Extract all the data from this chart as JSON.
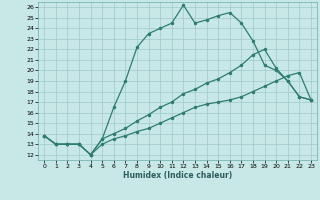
{
  "title": "",
  "xlabel": "Humidex (Indice chaleur)",
  "xlim": [
    -0.5,
    23.5
  ],
  "ylim": [
    11.5,
    26.5
  ],
  "yticks": [
    12,
    13,
    14,
    15,
    16,
    17,
    18,
    19,
    20,
    21,
    22,
    23,
    24,
    25,
    26
  ],
  "xticks": [
    0,
    1,
    2,
    3,
    4,
    5,
    6,
    7,
    8,
    9,
    10,
    11,
    12,
    13,
    14,
    15,
    16,
    17,
    18,
    19,
    20,
    21,
    22,
    23
  ],
  "bg_color": "#c8e8e8",
  "grid_color": "#a0c8c8",
  "line_color": "#2e7d6e",
  "line1_x": [
    0,
    1,
    2,
    3,
    4,
    5,
    6,
    7,
    8,
    9,
    10,
    11,
    12,
    13,
    14,
    15,
    16,
    17,
    18,
    19,
    20,
    21,
    22,
    23
  ],
  "line1_y": [
    13.8,
    13.0,
    13.0,
    13.0,
    12.0,
    13.5,
    16.5,
    19.0,
    22.2,
    23.5,
    24.0,
    24.5,
    26.2,
    24.5,
    24.8,
    25.2,
    25.5,
    24.5,
    22.8,
    20.5,
    20.0,
    19.0,
    17.5,
    17.2
  ],
  "line2_x": [
    0,
    1,
    2,
    3,
    4,
    5,
    6,
    7,
    8,
    9,
    10,
    11,
    12,
    13,
    14,
    15,
    16,
    17,
    18,
    19,
    20,
    21,
    22,
    23
  ],
  "line2_y": [
    13.8,
    13.0,
    13.0,
    13.0,
    12.0,
    13.5,
    14.0,
    14.5,
    15.2,
    15.8,
    16.5,
    17.0,
    17.8,
    18.2,
    18.8,
    19.2,
    19.8,
    20.5,
    21.5,
    22.0,
    20.2,
    19.0,
    17.5,
    17.2
  ],
  "line3_x": [
    0,
    1,
    2,
    3,
    4,
    5,
    6,
    7,
    8,
    9,
    10,
    11,
    12,
    13,
    14,
    15,
    16,
    17,
    18,
    19,
    20,
    21,
    22,
    23
  ],
  "line3_y": [
    13.8,
    13.0,
    13.0,
    13.0,
    12.0,
    13.0,
    13.5,
    13.8,
    14.2,
    14.5,
    15.0,
    15.5,
    16.0,
    16.5,
    16.8,
    17.0,
    17.2,
    17.5,
    18.0,
    18.5,
    19.0,
    19.5,
    19.8,
    17.2
  ]
}
